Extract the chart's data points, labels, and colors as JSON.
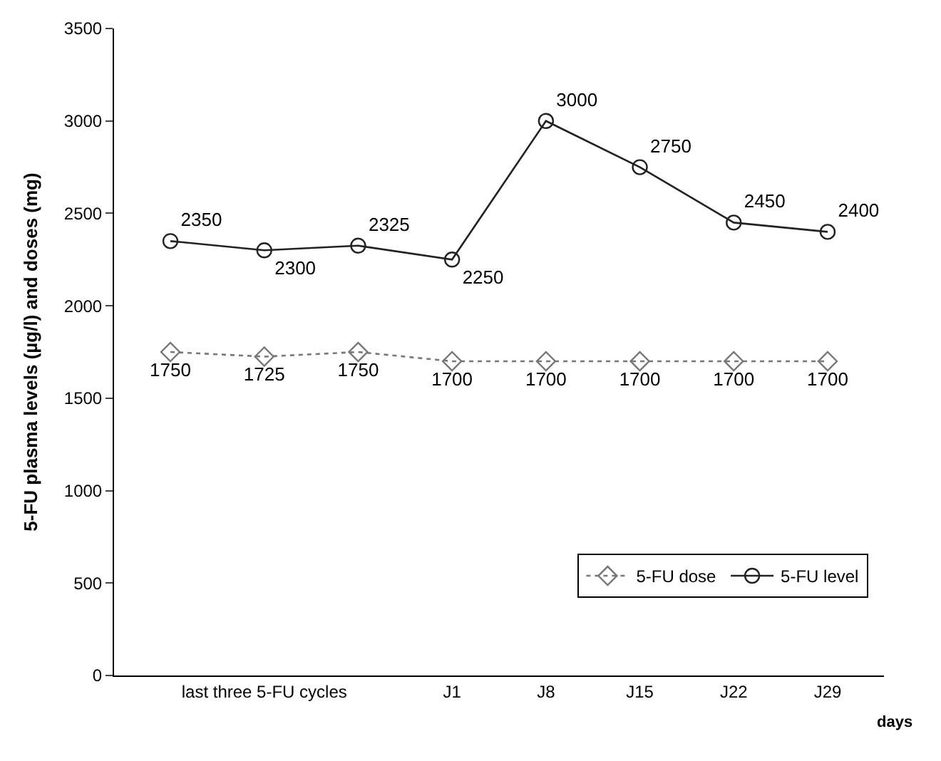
{
  "chart_data": {
    "type": "line",
    "ylabel": "5-FU plasma levels (µg/l) and doses (mg)",
    "xlabel": "days",
    "categories": [
      null,
      "last three 5-FU cycles",
      null,
      "J1",
      "J8",
      "J15",
      "J22",
      "J29"
    ],
    "series": [
      {
        "name": "5-FU dose",
        "color": "#777777",
        "marker": "diamond",
        "line_style": "dotted",
        "values": [
          1750,
          1725,
          1750,
          1700,
          1700,
          1700,
          1700,
          1700
        ]
      },
      {
        "name": "5-FU level",
        "color": "#222222",
        "marker": "circle",
        "line_style": "solid",
        "values": [
          2350,
          2300,
          2325,
          2250,
          3000,
          2750,
          2450,
          2400
        ]
      }
    ],
    "ylim": [
      0,
      3500
    ],
    "yticks": [
      0,
      500,
      1000,
      1500,
      2000,
      2500,
      3000,
      3500
    ],
    "data_labels": true,
    "legend": "bottom right"
  }
}
